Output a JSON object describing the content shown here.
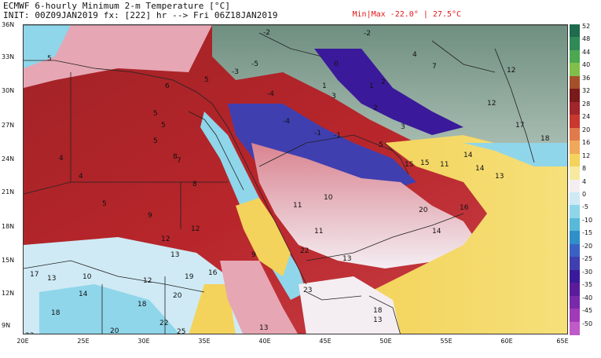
{
  "header": {
    "title": "ECMWF 6-hourly Minimum 2-m Temperature [°C]",
    "init": "INIT: 00Z09JAN2019 fx: [222] hr --> Fri 06Z18JAN2019",
    "minmax": "Min|Max -22.0° | 27.5°C"
  },
  "colors": {
    "warm_red": "#b8262b",
    "deep_red": "#8e1a22",
    "pink": "#e6a6b4",
    "white": "#f4eef2",
    "yellow": "#f3d35b",
    "cyan": "#8fd6ea",
    "blue": "#3f6fcf",
    "purple": "#3a1a9a",
    "gray_green": "#8aa89a"
  },
  "map": {
    "lat_labels": [
      "36N",
      "33N",
      "30N",
      "27N",
      "24N",
      "21N",
      "18N",
      "15N",
      "12N",
      "9N"
    ],
    "lon_labels": [
      "20E",
      "25E",
      "30E",
      "35E",
      "40E",
      "45E",
      "50E",
      "55E",
      "60E",
      "65E"
    ],
    "values": [
      "5",
      "6",
      "4",
      "5",
      "8",
      "5",
      "5",
      "4",
      "5",
      "9",
      "12",
      "12",
      "13",
      "10",
      "12",
      "17",
      "13",
      "14",
      "18",
      "19",
      "16",
      "20",
      "22",
      "23",
      "25",
      "20",
      "18",
      "-2",
      "-5",
      "-3",
      "-4",
      "-4",
      "-1",
      "1",
      "0",
      "1",
      "2",
      "3",
      "4",
      "5",
      "15",
      "18",
      "-1",
      "-2",
      "2",
      "10",
      "11",
      "11",
      "14",
      "9",
      "22",
      "13",
      "11",
      "15",
      "16",
      "13",
      "14",
      "14",
      "17",
      "12",
      "12",
      "13",
      "13",
      "18",
      "20",
      "23",
      "7",
      "7",
      "8",
      "5",
      "3"
    ]
  },
  "colorbar": {
    "labels": [
      "52",
      "48",
      "44",
      "40",
      "36",
      "32",
      "28",
      "24",
      "20",
      "16",
      "12",
      "8",
      "4",
      "0",
      "-5",
      "-10",
      "-15",
      "-20",
      "-25",
      "-30",
      "-35",
      "-40",
      "-45",
      "-50"
    ],
    "colors": [
      "#1f6b4e",
      "#2f8a57",
      "#4da852",
      "#7fbf4a",
      "#a5502a",
      "#7a1a1a",
      "#a0262b",
      "#c8382f",
      "#e07a4a",
      "#f0a85a",
      "#f3d35b",
      "#f7eaa0",
      "#f4eef2",
      "#cfeaf4",
      "#8fd6ea",
      "#58b9d9",
      "#2f8fc8",
      "#3a62c4",
      "#3f3fb0",
      "#3a1a9a",
      "#5a1c9a",
      "#7a2aa8",
      "#a03ab8",
      "#c05ac8"
    ]
  }
}
